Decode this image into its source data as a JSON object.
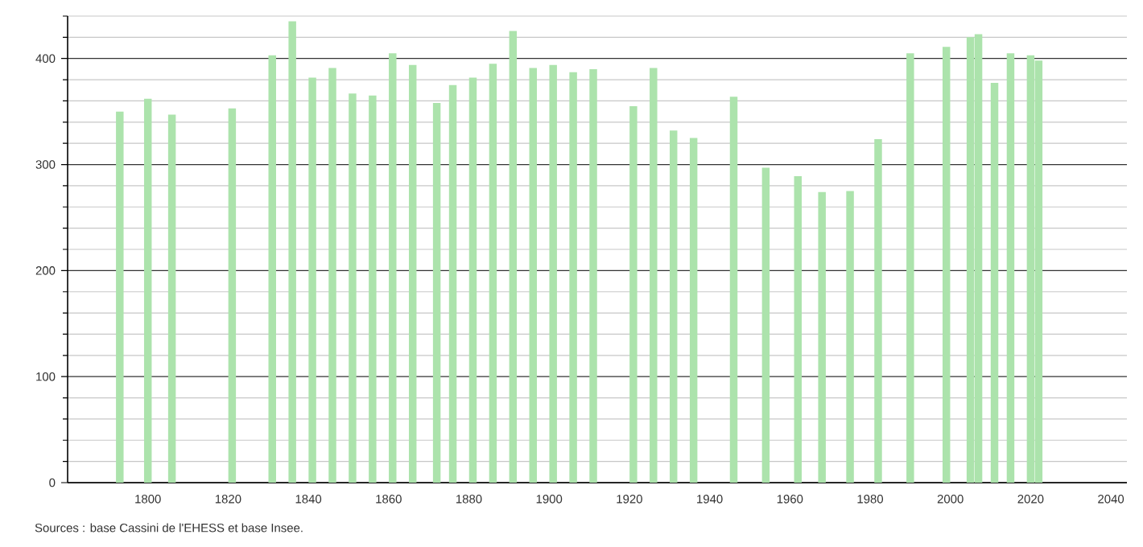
{
  "chart_data": {
    "type": "bar",
    "x": [
      1793,
      1800,
      1806,
      1821,
      1831,
      1836,
      1841,
      1846,
      1851,
      1856,
      1861,
      1866,
      1872,
      1876,
      1881,
      1886,
      1891,
      1896,
      1901,
      1906,
      1911,
      1921,
      1926,
      1931,
      1936,
      1946,
      1954,
      1962,
      1968,
      1975,
      1982,
      1990,
      1999,
      2005,
      2007,
      2011,
      2015,
      2020,
      2022
    ],
    "values": [
      350,
      362,
      347,
      353,
      403,
      435,
      382,
      391,
      367,
      365,
      405,
      394,
      358,
      375,
      382,
      395,
      426,
      391,
      394,
      387,
      390,
      355,
      391,
      332,
      325,
      364,
      297,
      289,
      274,
      275,
      324,
      405,
      411,
      420,
      423,
      377,
      405,
      403,
      398
    ],
    "color": "#ace3ac",
    "xlim": [
      1780,
      2044
    ],
    "xticks": [
      1800,
      1820,
      1840,
      1860,
      1880,
      1900,
      1920,
      1940,
      1960,
      1980,
      2000,
      2020,
      2040
    ],
    "ylim": [
      0,
      440
    ],
    "yticks": [
      0,
      {
        "value": 20,
        "label": null
      },
      {
        "value": 40,
        "label": null
      },
      {
        "value": 60,
        "label": null
      },
      {
        "value": 80,
        "label": null
      },
      100,
      {
        "value": 120,
        "label": null
      },
      {
        "value": 140,
        "label": null
      },
      {
        "value": 160,
        "label": null
      },
      {
        "value": 180,
        "label": null
      },
      200,
      {
        "value": 220,
        "label": null
      },
      {
        "value": 240,
        "label": null
      },
      {
        "value": 260,
        "label": null
      },
      {
        "value": 280,
        "label": null
      },
      300,
      {
        "value": 320,
        "label": null
      },
      {
        "value": 340,
        "label": null
      },
      {
        "value": 360,
        "label": null
      },
      {
        "value": 380,
        "label": null
      },
      400,
      {
        "value": 420,
        "label": null
      },
      {
        "value": 440,
        "label": null
      }
    ],
    "grid": "y",
    "annotations": [
      "Sources : base Cassini de l'EHESS et base Insee."
    ]
  }
}
